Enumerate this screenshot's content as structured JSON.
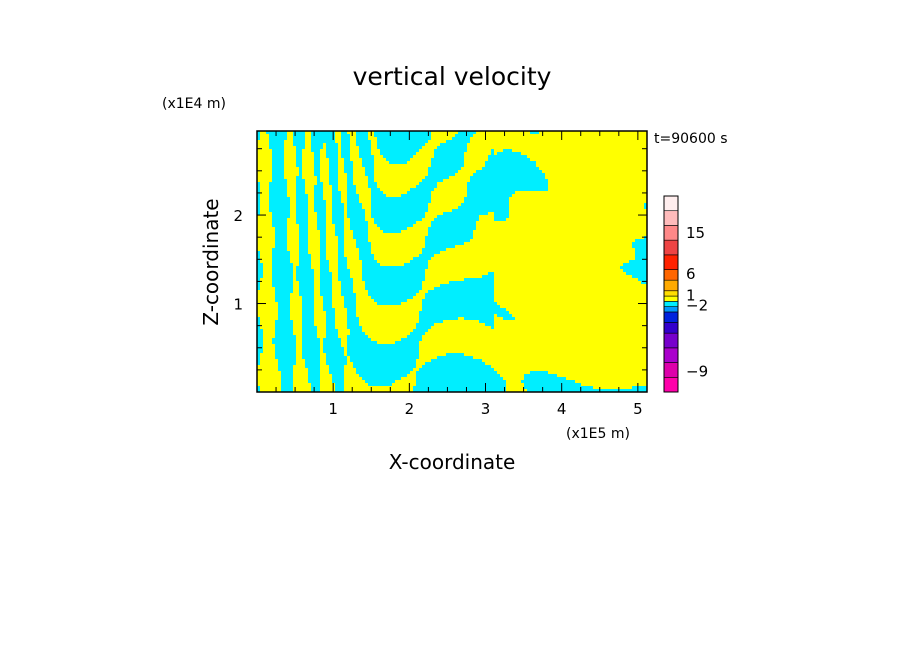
{
  "chart_data": {
    "type": "heatmap",
    "title": "vertical velocity",
    "xlabel": "X-coordinate",
    "ylabel": "Z-coordinate",
    "x_multiplier_label": "(x1E5 m)",
    "y_multiplier_label": "(x1E4 m)",
    "time_label": "t=90600 s",
    "xlim": [
      0,
      5.12
    ],
    "ylim": [
      0,
      2.95
    ],
    "x_ticks": [
      {
        "value": 1,
        "label": "1"
      },
      {
        "value": 2,
        "label": "2"
      },
      {
        "value": 3,
        "label": "3"
      },
      {
        "value": 4,
        "label": "4"
      },
      {
        "value": 5,
        "label": "5"
      }
    ],
    "y_ticks": [
      {
        "value": 1,
        "label": "1"
      },
      {
        "value": 2,
        "label": "2"
      }
    ],
    "field_colors": {
      "positive": "#ffff00",
      "negative": "#00eeff"
    },
    "colorbar": {
      "levels": [
        {
          "color": "#ff00aa"
        },
        {
          "color": "#dd00aa"
        },
        {
          "color": "#aa00cc"
        },
        {
          "color": "#7700cc"
        },
        {
          "color": "#3300cc"
        },
        {
          "color": "#0022dd"
        },
        {
          "color": "#0099ff"
        },
        {
          "color": "#00eeff"
        },
        {
          "color": "#ffff00"
        },
        {
          "color": "#ffdd00"
        },
        {
          "color": "#ffaa00"
        },
        {
          "color": "#ff6600"
        },
        {
          "color": "#ff2200"
        },
        {
          "color": "#ee4444"
        },
        {
          "color": "#ff8888"
        },
        {
          "color": "#ffbbbb"
        },
        {
          "color": "#ffeeee"
        }
      ],
      "labels": [
        {
          "text": "15",
          "level": 14.5
        },
        {
          "text": "6",
          "level": 11.6
        },
        {
          "text": "1",
          "level": 9.1
        },
        {
          "text": "−2",
          "level": 7.2
        },
        {
          "text": "−9",
          "level": 1.4
        }
      ]
    }
  }
}
